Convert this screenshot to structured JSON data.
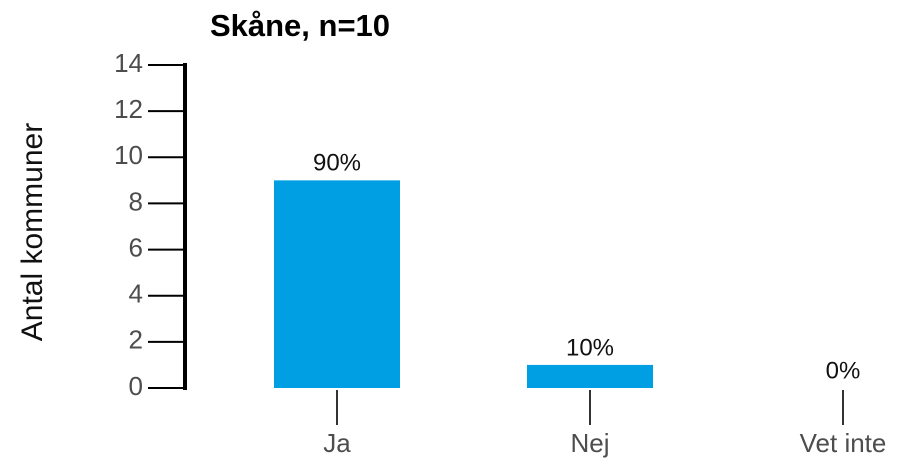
{
  "chart_data": {
    "type": "bar",
    "title": "Skåne, n=10",
    "ylabel": "Antal kommuner",
    "categories": [
      "Ja",
      "Nej",
      "Vet inte"
    ],
    "values": [
      9,
      1,
      0
    ],
    "value_labels": [
      "90%",
      "10%",
      "0%"
    ],
    "color": "#009fe3",
    "ylim": [
      0,
      14
    ],
    "yticks": [
      0,
      2,
      4,
      6,
      8,
      10,
      12,
      14
    ],
    "grid": false
  }
}
